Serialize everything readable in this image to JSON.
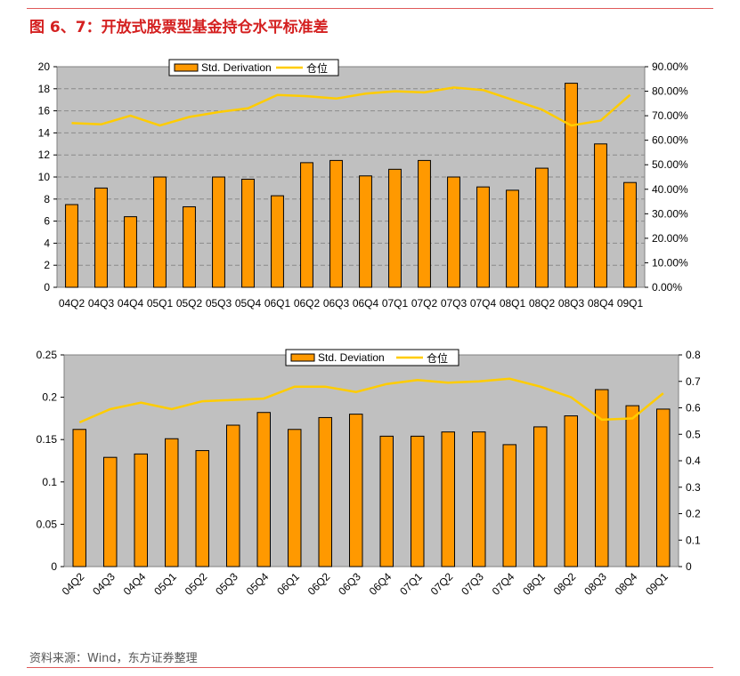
{
  "title": "图 6、7：开放式股票型基金持仓水平标准差",
  "source": "资料来源：Wind，东方证券整理",
  "colors": {
    "bar": "#ff9900",
    "bar_stroke": "#000000",
    "line": "#ffcc00",
    "plot_bg": "#c0c0c0",
    "title": "#d42020",
    "rule": "#e05a5a"
  },
  "chart_data": [
    {
      "type": "bar",
      "categories": [
        "04Q2",
        "04Q3",
        "04Q4",
        "05Q1",
        "05Q2",
        "05Q3",
        "05Q4",
        "06Q1",
        "06Q2",
        "06Q3",
        "06Q4",
        "07Q1",
        "07Q2",
        "07Q3",
        "07Q4",
        "08Q1",
        "08Q2",
        "08Q3",
        "08Q4",
        "09Q1"
      ],
      "series": [
        {
          "name": "Std. Derivation",
          "type": "bar",
          "axis": "left",
          "values": [
            7.5,
            9.0,
            6.4,
            10.0,
            7.3,
            10.0,
            9.8,
            8.3,
            11.3,
            11.5,
            10.1,
            10.7,
            11.5,
            10.0,
            9.1,
            8.8,
            10.8,
            18.5,
            13.0,
            9.5
          ]
        },
        {
          "name": "仓位",
          "type": "line",
          "axis": "right",
          "values": [
            67.0,
            66.5,
            70.0,
            66.0,
            69.5,
            71.5,
            73.0,
            78.5,
            78.0,
            77.0,
            79.0,
            80.0,
            79.5,
            81.5,
            80.5,
            76.5,
            72.5,
            66.0,
            68.0,
            78.5
          ]
        }
      ],
      "y_left": {
        "min": 0,
        "max": 20,
        "ticks": [
          "0",
          "2",
          "4",
          "6",
          "8",
          "10",
          "12",
          "14",
          "16",
          "18",
          "20"
        ]
      },
      "y_right": {
        "min": 0,
        "max": 90,
        "ticks": [
          "0.00%",
          "10.00%",
          "20.00%",
          "30.00%",
          "40.00%",
          "50.00%",
          "60.00%",
          "70.00%",
          "80.00%",
          "90.00%"
        ]
      },
      "x_label_rotation": 0,
      "legend": "top-center",
      "grid": true
    },
    {
      "type": "bar",
      "categories": [
        "04Q2",
        "04Q3",
        "04Q4",
        "05Q1",
        "05Q2",
        "05Q3",
        "05Q4",
        "06Q1",
        "06Q2",
        "06Q3",
        "06Q4",
        "07Q1",
        "07Q2",
        "07Q3",
        "07Q4",
        "08Q1",
        "08Q2",
        "08Q3",
        "08Q4",
        "09Q1"
      ],
      "series": [
        {
          "name": "Std. Deviation",
          "type": "bar",
          "axis": "left",
          "values": [
            0.162,
            0.129,
            0.133,
            0.151,
            0.137,
            0.167,
            0.182,
            0.162,
            0.176,
            0.18,
            0.154,
            0.154,
            0.159,
            0.159,
            0.144,
            0.165,
            0.178,
            0.209,
            0.19,
            0.186
          ]
        },
        {
          "name": "仓位",
          "type": "line",
          "axis": "right",
          "values": [
            0.545,
            0.595,
            0.62,
            0.595,
            0.625,
            0.63,
            0.635,
            0.68,
            0.68,
            0.66,
            0.69,
            0.705,
            0.695,
            0.7,
            0.71,
            0.68,
            0.64,
            0.555,
            0.56,
            0.655
          ]
        }
      ],
      "y_left": {
        "min": 0,
        "max": 0.25,
        "ticks": [
          "0",
          "0.05",
          "0.1",
          "0.15",
          "0.2",
          "0.25"
        ]
      },
      "y_right": {
        "min": 0,
        "max": 0.8,
        "ticks": [
          "0",
          "0.1",
          "0.2",
          "0.3",
          "0.4",
          "0.5",
          "0.6",
          "0.7",
          "0.8"
        ]
      },
      "x_label_rotation": -45,
      "legend": "top-center",
      "grid": false
    }
  ]
}
